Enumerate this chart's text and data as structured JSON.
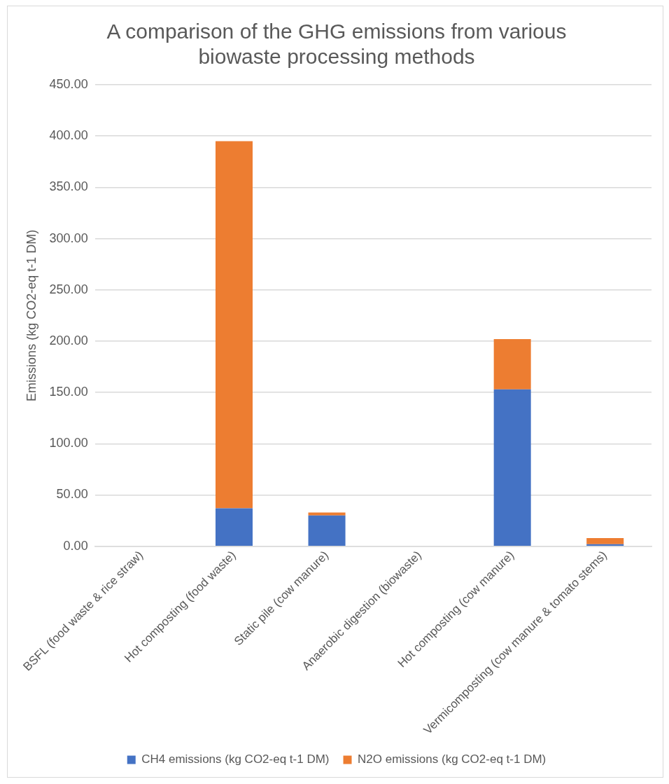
{
  "chart_data": {
    "type": "bar",
    "title": "A comparison of the GHG emissions from various biowaste processing methods",
    "ylabel": "Emissions (kg CO2-eq t-1 DM)",
    "categories": [
      "BSFL (food waste & rice straw)",
      "Hot composting (food waste)",
      "Static pile (cow manure)",
      "Anaerobic digestion (biowaste)",
      "Hot composting (cow manure)",
      "Vermicomposting (cow manure & tomato stems)"
    ],
    "series": [
      {
        "name": "CH4 emissions (kg CO2-eq t-1 DM)",
        "color": "#4472c4",
        "values": [
          0,
          37,
          30,
          0,
          153,
          2
        ]
      },
      {
        "name": "N2O emissions (kg CO2-eq t-1 DM)",
        "color": "#ed7d31",
        "values": [
          0,
          358,
          3,
          0,
          49,
          6
        ]
      }
    ],
    "stacked": true,
    "ylim": [
      0,
      450
    ],
    "yticks": [
      {
        "value": 0,
        "label": "0.00"
      },
      {
        "value": 50,
        "label": "50.00"
      },
      {
        "value": 100,
        "label": "100.00"
      },
      {
        "value": 150,
        "label": "150.00"
      },
      {
        "value": 200,
        "label": "200.00"
      },
      {
        "value": 250,
        "label": "250.00"
      },
      {
        "value": 300,
        "label": "300.00"
      },
      {
        "value": 350,
        "label": "350.00"
      },
      {
        "value": 400,
        "label": "400.00"
      },
      {
        "value": 450,
        "label": "450.00"
      }
    ],
    "grid": "y",
    "legend": "bottom"
  }
}
